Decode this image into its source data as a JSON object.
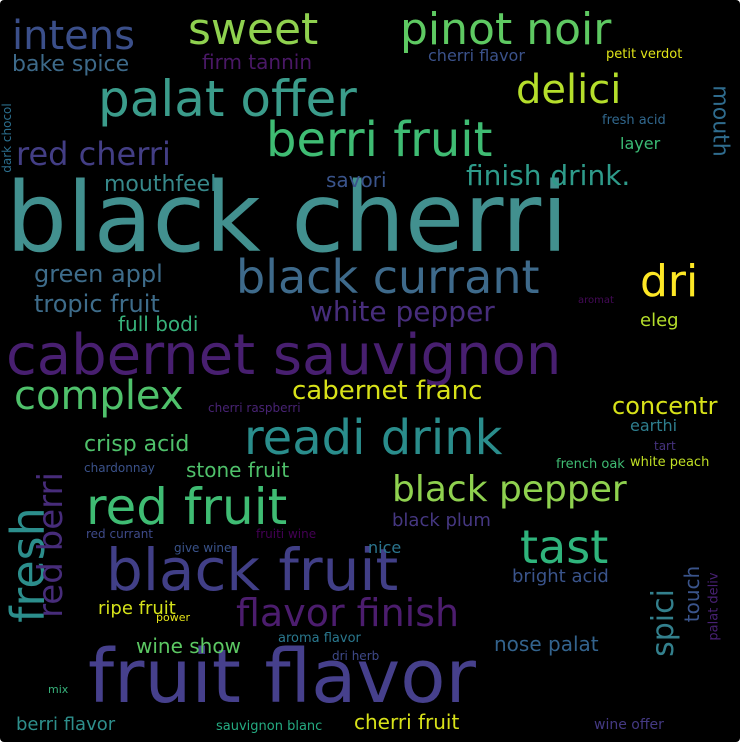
{
  "words": [
    {
      "text": "black cherri",
      "color": "#42908f"
    },
    {
      "text": "fruit flavor",
      "color": "#46408c"
    },
    {
      "text": "cabernet sauvignon",
      "color": "#481f70"
    },
    {
      "text": "palat offer",
      "color": "#3b9c8b"
    },
    {
      "text": "black fruit",
      "color": "#413f87"
    },
    {
      "text": "sweet",
      "color": "#8fd14f"
    },
    {
      "text": "pinot noir",
      "color": "#5ec962"
    },
    {
      "text": "berri fruit",
      "color": "#3fbc73"
    },
    {
      "text": "black currant",
      "color": "#3e6a8b"
    },
    {
      "text": "readi drink",
      "color": "#2a8d8c"
    },
    {
      "text": "red fruit",
      "color": "#3fbc73"
    },
    {
      "text": "black pepper",
      "color": "#8fd14f"
    },
    {
      "text": "flavor finish",
      "color": "#4c1d6e"
    },
    {
      "text": "tast",
      "color": "#2fb47c"
    },
    {
      "text": "complex",
      "color": "#4fc16b"
    },
    {
      "text": "intens",
      "color": "#3b4f8a"
    },
    {
      "text": "delici",
      "color": "#b5de2b"
    },
    {
      "text": "red cherri",
      "color": "#433e85"
    },
    {
      "text": "dri",
      "color": "#fde725"
    },
    {
      "text": "fresh",
      "color": "#2c8e8c"
    },
    {
      "text": "red berri",
      "color": "#472c7a"
    },
    {
      "text": "finish drink.",
      "color": "#2e9b8a"
    },
    {
      "text": "white pepper",
      "color": "#472d7b"
    },
    {
      "text": "cabernet franc",
      "color": "#d8e219"
    },
    {
      "text": "green appl",
      "color": "#3e6c8a"
    },
    {
      "text": "tropic fruit",
      "color": "#3e6c8a"
    },
    {
      "text": "bake spice",
      "color": "#3d6a8a"
    },
    {
      "text": "firm tannin",
      "color": "#4a1866"
    },
    {
      "text": "mouthfeel",
      "color": "#37888a"
    },
    {
      "text": "savori",
      "color": "#3a548b"
    },
    {
      "text": "mouth",
      "color": "#2f6c8e"
    },
    {
      "text": "full bodi",
      "color": "#37b27b"
    },
    {
      "text": "concentr",
      "color": "#d7e219"
    },
    {
      "text": "crisp acid",
      "color": "#4fc16b"
    },
    {
      "text": "stone fruit",
      "color": "#4fc16b"
    },
    {
      "text": "spici",
      "color": "#33808d"
    },
    {
      "text": "black plum",
      "color": "#453781"
    },
    {
      "text": "nose palat",
      "color": "#33638d"
    },
    {
      "text": "bright acid",
      "color": "#3a548b"
    },
    {
      "text": "ripe fruit",
      "color": "#d5e21a"
    },
    {
      "text": "cherri fruit",
      "color": "#d8e219"
    },
    {
      "text": "wine show",
      "color": "#5cc863"
    },
    {
      "text": "berri flavor",
      "color": "#2e8f8c"
    },
    {
      "text": "eleg",
      "color": "#b5de2b"
    },
    {
      "text": "earthi",
      "color": "#2e7e8e"
    },
    {
      "text": "touch",
      "color": "#3a548b"
    },
    {
      "text": "cherri flavor",
      "color": "#3b528b"
    },
    {
      "text": "petit verdot",
      "color": "#dfe318"
    },
    {
      "text": "fresh acid",
      "color": "#31688e"
    },
    {
      "text": "layer",
      "color": "#3bbb75"
    },
    {
      "text": "dark chocol",
      "color": "#2c6f8e"
    },
    {
      "text": "aromat",
      "color": "#440a57"
    },
    {
      "text": "cherri raspberri",
      "color": "#482374"
    },
    {
      "text": "chardonnay",
      "color": "#3b528b"
    },
    {
      "text": "tart",
      "color": "#46337e"
    },
    {
      "text": "french oak",
      "color": "#3fbc73"
    },
    {
      "text": "white peach",
      "color": "#c0df25"
    },
    {
      "text": "nice",
      "color": "#2b758e"
    },
    {
      "text": "red currant",
      "color": "#3e4a89"
    },
    {
      "text": "give wine",
      "color": "#3a538b"
    },
    {
      "text": "fruiti wine",
      "color": "#440154"
    },
    {
      "text": "palat deliv",
      "color": "#482173"
    },
    {
      "text": "power",
      "color": "#e5e419"
    },
    {
      "text": "aroma flavor",
      "color": "#2a788e"
    },
    {
      "text": "dri herb",
      "color": "#3e4989"
    },
    {
      "text": "mix",
      "color": "#37b27b"
    },
    {
      "text": "sauvignon blanc",
      "color": "#25ab82"
    },
    {
      "text": "wine offer",
      "color": "#443983"
    }
  ]
}
